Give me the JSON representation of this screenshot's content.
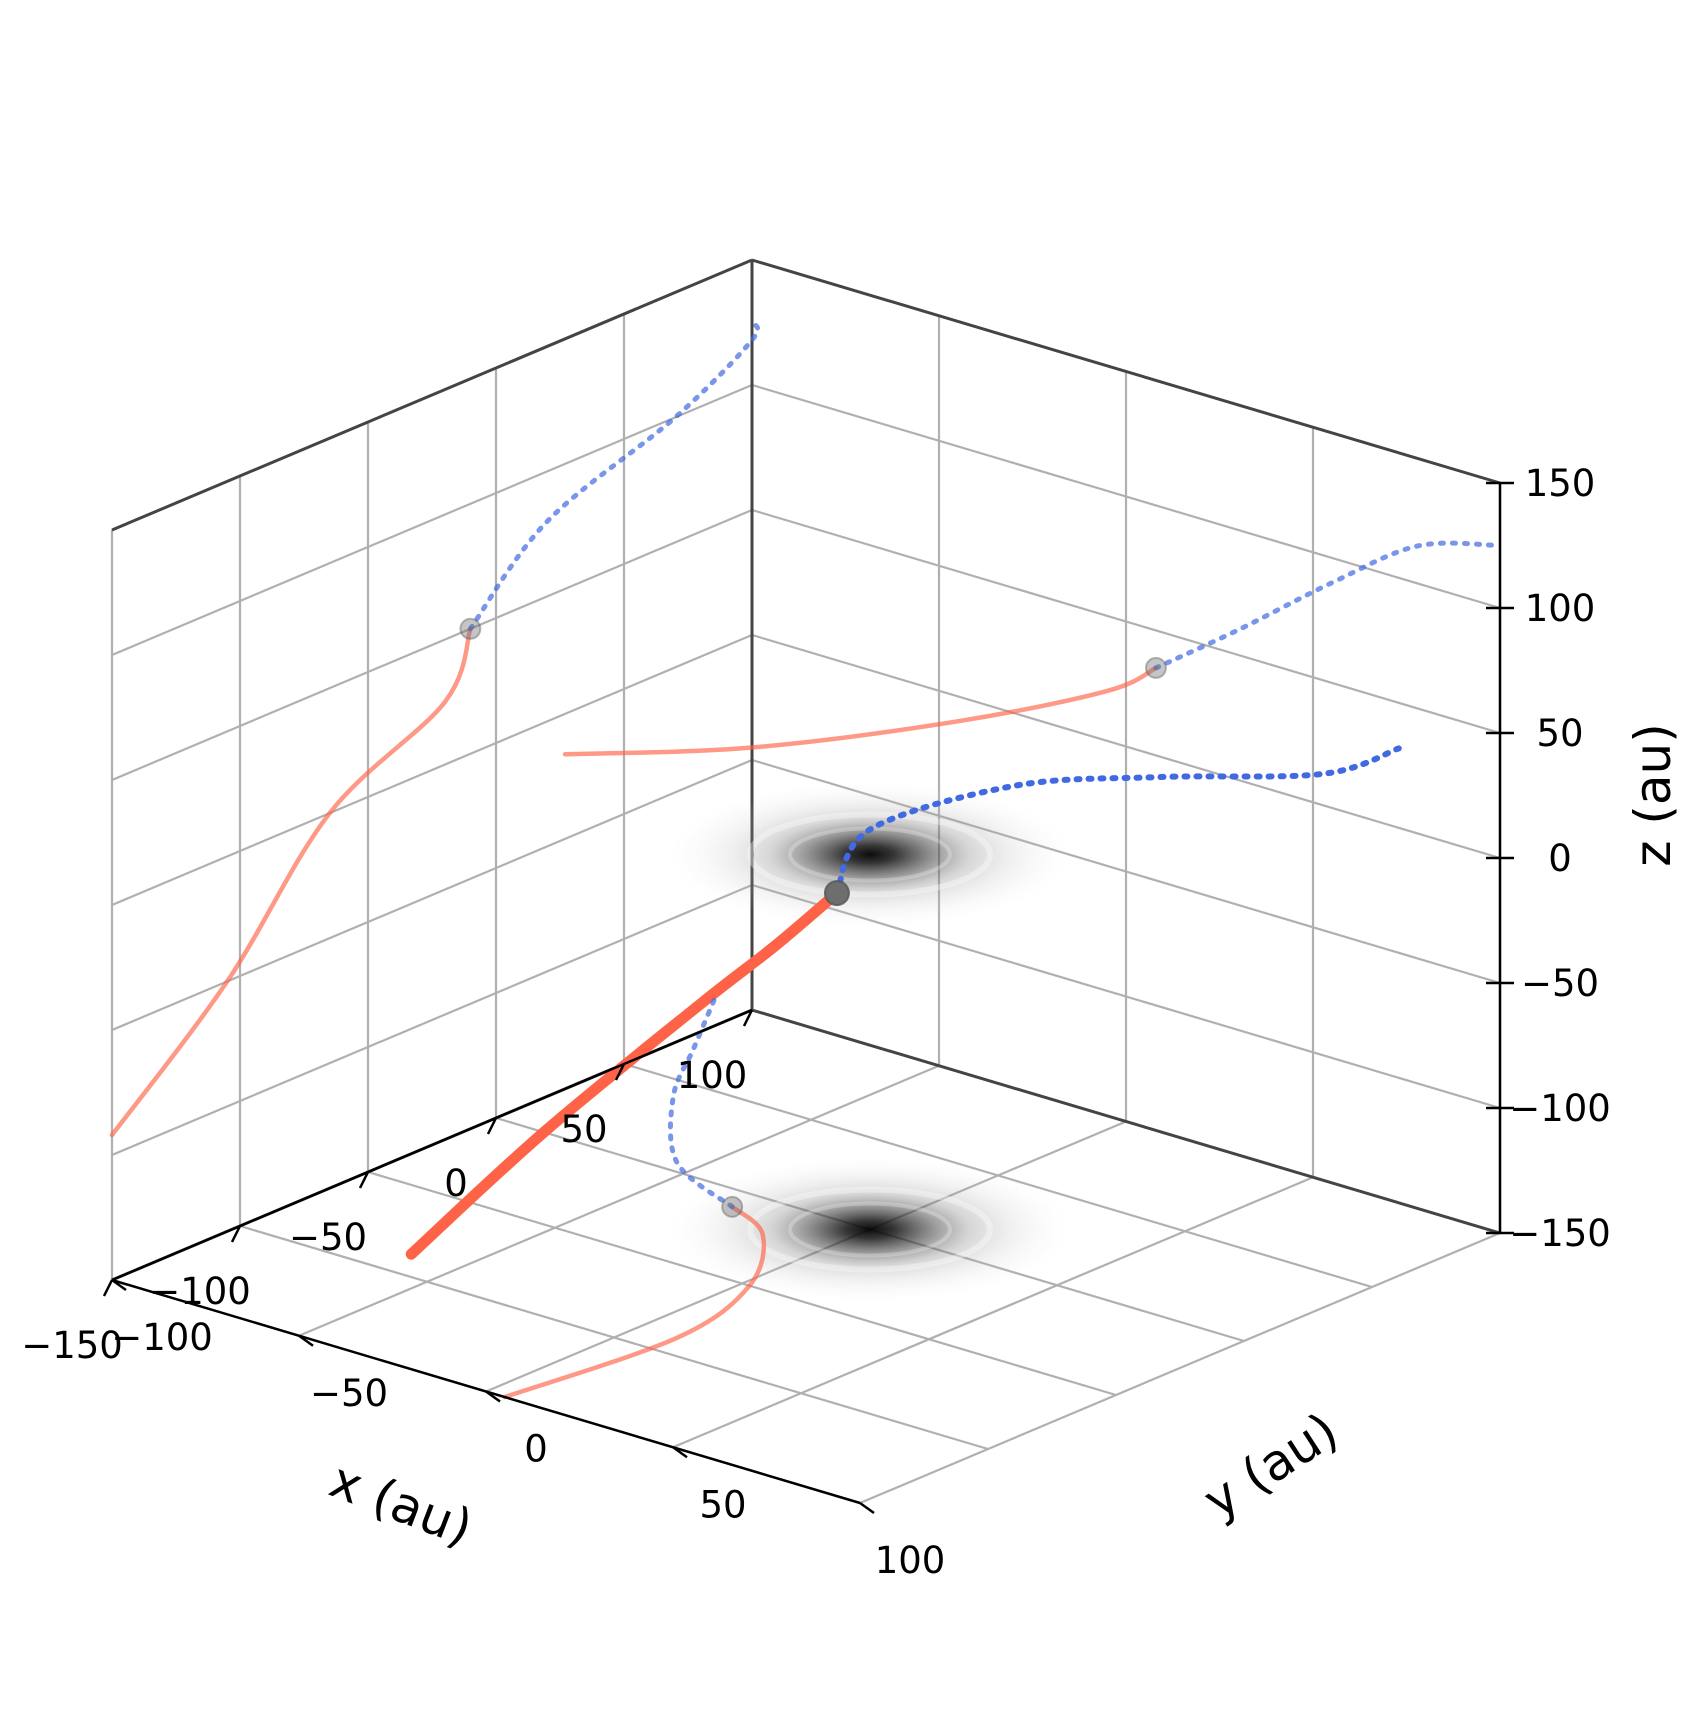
{
  "chart_data": {
    "type": "line3d",
    "title": "",
    "xlabel": "x (au)",
    "ylabel": "y (au)",
    "zlabel": "z (au)",
    "xlim": [
      -150,
      100
    ],
    "ylim": [
      -100,
      100
    ],
    "zlim": [
      -150,
      150
    ],
    "x_ticks": [
      100,
      50,
      0,
      -50,
      -100,
      -150
    ],
    "y_ticks": [
      -100,
      -50,
      0,
      50,
      100
    ],
    "z_ticks": [
      150,
      100,
      50,
      0,
      -50,
      -100,
      -150
    ],
    "x_tick_labels": [
      "100",
      "50",
      "0",
      "−50",
      "−100",
      "−150"
    ],
    "y_tick_labels": [
      "−100",
      "−50",
      "0",
      "50",
      "100"
    ],
    "z_tick_labels": [
      "150",
      "100",
      "50",
      "0",
      "−50",
      "−100",
      "−150"
    ],
    "grid": true,
    "colors": {
      "past_orbit": "#ff6347",
      "future_orbit": "#4169e1",
      "marker": "#6e6e6e",
      "disk": "#000000"
    },
    "projections": [
      {
        "plane": "main-3d",
        "solid": [
          [
            -150,
            -20,
            -104
          ],
          [
            -105,
            -15,
            -72
          ],
          [
            -55,
            -8,
            -40
          ],
          [
            -30,
            -5,
            -26
          ],
          [
            -10,
            -2,
            -12
          ]
        ],
        "dashed": [
          [
            -10,
            -2,
            -12
          ],
          [
            0,
            0,
            10
          ],
          [
            20,
            25,
            30
          ],
          [
            40,
            50,
            36
          ],
          [
            60,
            80,
            42
          ],
          [
            78,
            88,
            48
          ]
        ],
        "marker": [
          -10,
          -2,
          -12
        ]
      },
      {
        "plane": "x-z-wall",
        "solid": [
          [
            -150,
            -92
          ],
          [
            -105,
            -50
          ],
          [
            -65,
            0
          ],
          [
            -20,
            25
          ],
          [
            -10,
            50
          ]
        ],
        "dashed": [
          [
            -10,
            50
          ],
          [
            20,
            80
          ],
          [
            70,
            100
          ],
          [
            110,
            118
          ],
          [
            160,
            125
          ]
        ],
        "marker": [
          -10,
          50
        ]
      },
      {
        "plane": "y-z-wall",
        "solid": [
          [
            -150,
            -70
          ],
          [
            -100,
            -45
          ],
          [
            -45,
            -10
          ],
          [
            -5,
            20
          ],
          [
            8,
            35
          ]
        ],
        "dashed": [
          [
            8,
            35
          ],
          [
            30,
            60
          ],
          [
            55,
            90
          ],
          [
            78,
            115
          ],
          [
            100,
            125
          ]
        ],
        "marker": [
          8,
          35
        ]
      },
      {
        "plane": "x-y-floor",
        "solid": [
          [
            -150,
            5
          ],
          [
            -90,
            10
          ],
          [
            -50,
            2
          ],
          [
            -20,
            -15
          ],
          [
            -10,
            -30
          ]
        ],
        "dashed": [
          [
            -10,
            -30
          ],
          [
            5,
            -55
          ],
          [
            40,
            -80
          ],
          [
            70,
            -95
          ],
          [
            100,
            -110
          ]
        ],
        "marker": [
          -10,
          -30
        ]
      }
    ],
    "disks": [
      {
        "name": "disk-at-origin",
        "center": [
          0,
          0,
          0
        ]
      },
      {
        "name": "disk-floor-shadow",
        "center": [
          0,
          0,
          -150
        ]
      }
    ]
  }
}
